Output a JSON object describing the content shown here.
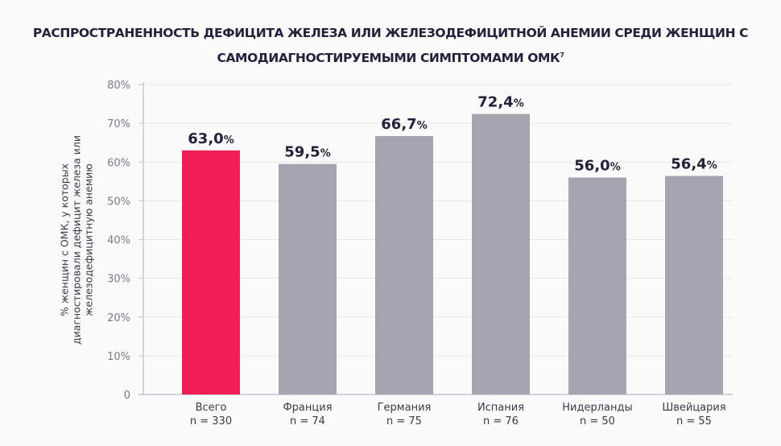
{
  "chart_data": {
    "type": "bar",
    "title": "РАСПРОСТРАНЕННОСТЬ ДЕФИЦИТА ЖЕЛЕЗА ИЛИ ЖЕЛЕЗОДЕФИЦИТНОЙ АНЕМИИ СРЕДИ ЖЕНЩИН С САМОДИАГНОСТИРУЕМЫМИ СИМПТОМАМИ ОМК",
    "title_superscript": "7",
    "ylabel": "% женщин с ОМК, у которых диагностировали дефицит железа или железодефицитную анемию",
    "xlabel": "",
    "ylim": [
      0,
      80
    ],
    "yticks": [
      "0",
      "10%",
      "20%",
      "30%",
      "40%",
      "50%",
      "60%",
      "70%",
      "80%"
    ],
    "grid": true,
    "categories": [
      "Всего",
      "Франция",
      "Германия",
      "Испания",
      "Нидерланды",
      "Швейцария"
    ],
    "sample_sizes": [
      "n = 330",
      "n = 74",
      "n = 75",
      "n = 76",
      "n = 50",
      "n = 55"
    ],
    "values": [
      63.0,
      59.5,
      66.7,
      72.4,
      56.0,
      56.4
    ],
    "value_labels": [
      "63,0",
      "59,5",
      "66,7",
      "72,4",
      "56,0",
      "56,4"
    ],
    "value_unit": "%",
    "colors": [
      "#f01e56",
      "#a5a5b1",
      "#a5a5b1",
      "#a5a5b1",
      "#a5a5b1",
      "#a5a5b1"
    ]
  }
}
